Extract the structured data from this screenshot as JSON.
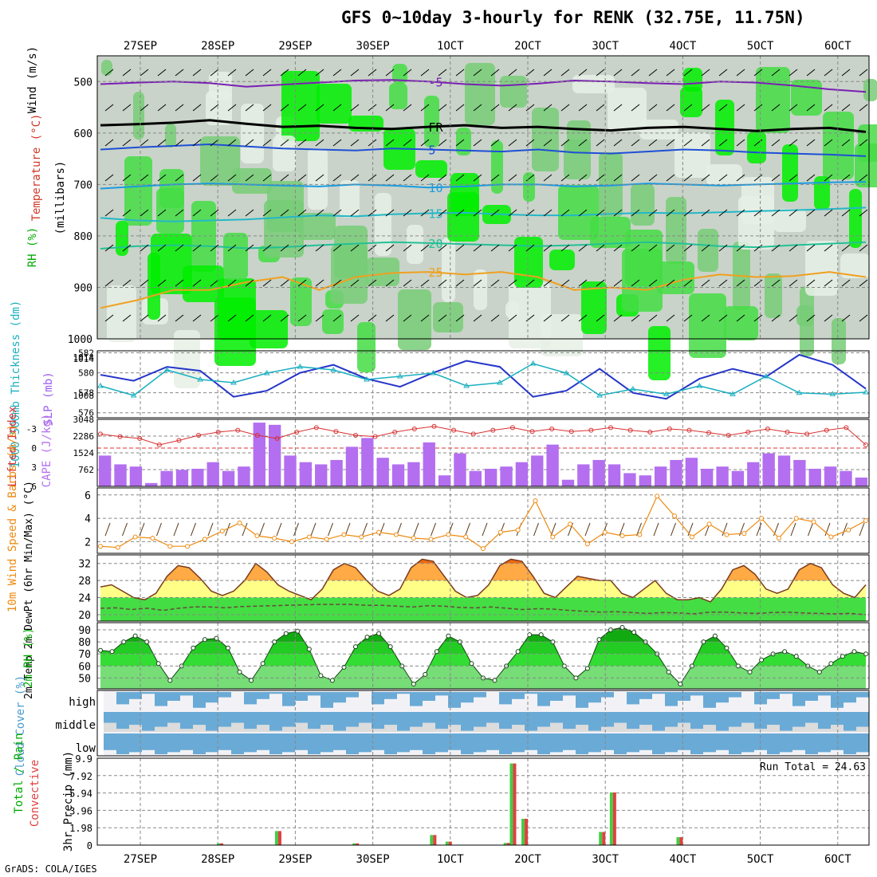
{
  "title": "GFS 0~10day 3-hourly for RENK (32.75E, 11.75N)",
  "footer": "GrADS: COLA/IGES",
  "date_labels": [
    "27SEP",
    "28SEP",
    "29SEP",
    "30SEP",
    "1OCT",
    "2OCT",
    "3OCT",
    "4OCT",
    "5OCT",
    "6OCT"
  ],
  "chart_data": [
    {
      "type": "heatmap",
      "panel": "upper-air",
      "ylabel": "(millibars)",
      "legend_labels": [
        "RH (%)",
        "Temperature (°C)",
        "Wind (m/s)"
      ],
      "yticks": [
        500,
        600,
        700,
        800,
        900,
        1000
      ],
      "ylim": [
        1000,
        450
      ],
      "temperature_contours": [
        {
          "label": "-5",
          "color": "#7a1fb5",
          "level_mb": [
            505,
            502,
            500,
            503,
            510,
            506,
            502,
            498,
            497,
            500,
            505,
            508,
            504,
            498,
            500,
            503,
            505,
            500,
            502,
            508,
            515,
            520
          ]
        },
        {
          "label": "FR",
          "color": "#000000",
          "level_mb": [
            585,
            583,
            580,
            575,
            582,
            588,
            586,
            590,
            592,
            588,
            585,
            590,
            588,
            592,
            595,
            590,
            588,
            592,
            596,
            592,
            590,
            598
          ]
        },
        {
          "label": "5",
          "color": "#1f4fd6",
          "level_mb": [
            632,
            628,
            625,
            622,
            626,
            630,
            632,
            634,
            630,
            632,
            634,
            636,
            632,
            638,
            640,
            636,
            632,
            634,
            638,
            640,
            642,
            645
          ]
        },
        {
          "label": "10",
          "color": "#1a9be0",
          "level_mb": [
            708,
            704,
            700,
            698,
            700,
            702,
            704,
            700,
            702,
            706,
            704,
            700,
            700,
            704,
            702,
            698,
            700,
            702,
            700,
            698,
            696,
            695
          ]
        },
        {
          "label": "15",
          "color": "#23b8c8",
          "level_mb": [
            765,
            770,
            772,
            770,
            768,
            764,
            760,
            762,
            758,
            756,
            755,
            758,
            760,
            760,
            757,
            755,
            756,
            754,
            752,
            750,
            748,
            745
          ]
        },
        {
          "label": "20",
          "color": "#22c196",
          "level_mb": [
            825,
            820,
            818,
            820,
            824,
            822,
            818,
            815,
            812,
            814,
            816,
            818,
            820,
            818,
            815,
            812,
            815,
            820,
            822,
            818,
            815,
            812
          ]
        },
        {
          "label": "25",
          "color": "#f0a020",
          "level_mb": [
            940,
            925,
            905,
            905,
            890,
            880,
            905,
            880,
            872,
            870,
            875,
            870,
            880,
            905,
            900,
            905,
            885,
            875,
            880,
            878,
            870,
            880
          ]
        }
      ]
    },
    {
      "type": "line",
      "panel": "thickness-slp",
      "ylabel_left": "1000-500mb Thickness (dm)",
      "ylabel_right": "SLP (mb)",
      "yticks_left": [
        "576",
        "578",
        "580",
        "582"
      ],
      "yticks_right": [
        "1008",
        "1014",
        "1014"
      ],
      "series": [
        {
          "name": "Thickness",
          "color": "#2535c8",
          "values": [
            579.8,
            579.2,
            580.6,
            580.2,
            577.6,
            578.2,
            580.0,
            580.8,
            579.4,
            578.6,
            580.0,
            581.2,
            580.6,
            577.6,
            578.2,
            580.4,
            578.0,
            577.4,
            579.4,
            580.4,
            579.6,
            581.8,
            580.8,
            578.4
          ]
        },
        {
          "name": "SLP",
          "color": "#1ab0c0",
          "values": [
            1009.5,
            1008.0,
            1012.0,
            1010.5,
            1010.0,
            1011.5,
            1012.5,
            1012.0,
            1010.5,
            1011.0,
            1011.5,
            1009.5,
            1010.0,
            1013.0,
            1011.5,
            1008.0,
            1009.0,
            1008.2,
            1009.5,
            1008.2,
            1011.0,
            1008.4,
            1008.2,
            1008.5
          ]
        }
      ]
    },
    {
      "type": "bar",
      "panel": "cape-li",
      "ylabel_left": "Lifted Index",
      "ylabel_right": "CAPE (J/kg)",
      "yticks_left": [
        "-3",
        "0",
        "3",
        "6"
      ],
      "yticks_right": [
        "762",
        "1524",
        "2286",
        "3048"
      ],
      "cape_values": [
        1400,
        1000,
        900,
        150,
        700,
        750,
        800,
        1100,
        700,
        900,
        2900,
        2800,
        1400,
        1100,
        1000,
        1200,
        1800,
        2200,
        1300,
        1000,
        1100,
        2000,
        500,
        1500,
        700,
        800,
        900,
        1100,
        1400,
        1900,
        300,
        1000,
        1200,
        1000,
        600,
        500,
        900,
        1200,
        1300,
        800,
        900,
        700,
        1100,
        1500,
        1400,
        1200,
        800,
        900,
        700,
        400
      ],
      "li_values": [
        -2.2,
        -1.8,
        -1.5,
        -0.5,
        -1.2,
        -2.0,
        -2.5,
        -2.8,
        -2.0,
        -1.5,
        -2.5,
        -3.2,
        -2.6,
        -2.0,
        -1.8,
        -2.5,
        -3.0,
        -3.4,
        -2.8,
        -2.2,
        -2.8,
        -3.2,
        -2.6,
        -3.0,
        -2.6,
        -2.8,
        -3.2,
        -2.8,
        -2.5,
        -3.0,
        -2.8,
        -2.4,
        -2.0,
        -2.5,
        -3.0,
        -2.5,
        -2.2,
        -2.8,
        -3.2,
        -0.5
      ]
    },
    {
      "type": "line",
      "panel": "wind-10m",
      "ylabel": "10m Wind Speed & Barbs (m/s)",
      "yticks": [
        "2",
        "4",
        "6"
      ],
      "series": [
        {
          "name": "Speed",
          "color": "#ee8a10",
          "values": [
            1.6,
            1.5,
            2.4,
            2.3,
            1.6,
            1.6,
            2.2,
            2.9,
            3.6,
            2.5,
            2.3,
            2.0,
            2.4,
            2.2,
            2.6,
            2.4,
            2.8,
            2.6,
            2.3,
            2.2,
            2.6,
            2.4,
            1.4,
            2.8,
            3.0,
            5.5,
            2.4,
            3.5,
            1.8,
            2.8,
            2.5,
            2.6,
            5.9,
            4.2,
            2.4,
            3.5,
            2.6,
            2.7,
            4.0,
            2.3,
            4.0,
            3.7,
            2.4,
            3.0,
            3.8
          ]
        }
      ]
    },
    {
      "type": "area",
      "panel": "temperature-2m",
      "ylabel": "2m Temp 2m DewPt (6hr Min/Max) (°C)",
      "yticks": [
        "20",
        "24",
        "28",
        "32"
      ],
      "series": [
        {
          "name": "Temp",
          "values": [
            26.5,
            27.0,
            25.5,
            24.0,
            23.5,
            25.0,
            29.0,
            31.5,
            31.0,
            28.5,
            25.5,
            24.5,
            25.5,
            28.0,
            32.0,
            30.0,
            27.0,
            25.5,
            24.5,
            23.5,
            26.0,
            30.5,
            32.0,
            31.0,
            28.0,
            25.5,
            24.5,
            26.0,
            31.0,
            33.0,
            32.5,
            29.0,
            25.5,
            24.0,
            24.5,
            27.0,
            31.5,
            33.0,
            32.5,
            29.0,
            25.0,
            24.0,
            26.5,
            29.0,
            28.5,
            28.0,
            28.0,
            25.0,
            24.0,
            26.0,
            28.0,
            25.0,
            23.5,
            23.5,
            24.0,
            23.0,
            26.0,
            30.5,
            31.5,
            29.5,
            26.0,
            25.0,
            26.0,
            30.5,
            32.0,
            31.0,
            27.0,
            25.0,
            24.0,
            27.0
          ]
        },
        {
          "name": "DewPt",
          "values": [
            21.5,
            21.6,
            21.2,
            21.5,
            21.0,
            21.5,
            21.8,
            21.8,
            21.6,
            21.9,
            22.0,
            22.1,
            22.2,
            22.3,
            22.4,
            22.4,
            22.4,
            22.2,
            22.2,
            22.0,
            21.8,
            22.1,
            22.0,
            21.7,
            21.6,
            21.8,
            21.5,
            21.2,
            21.4,
            21.3,
            21.0,
            20.8,
            20.6,
            20.7,
            20.5,
            20.3,
            20.5,
            20.4,
            20.2,
            20.6,
            20.6,
            20.4,
            20.3,
            20.5,
            20.6,
            20.4,
            20.3,
            20.2,
            20.3,
            20.0
          ]
        }
      ]
    },
    {
      "type": "area",
      "panel": "rh-2m",
      "ylabel": "2m RH (%)",
      "yticks": [
        "50",
        "60",
        "70",
        "80",
        "90"
      ],
      "series": [
        {
          "name": "RH",
          "values": [
            73,
            72,
            80,
            85,
            80,
            62,
            48,
            60,
            75,
            82,
            83,
            75,
            55,
            48,
            62,
            80,
            87,
            89,
            74,
            52,
            48,
            59,
            76,
            84,
            87,
            76,
            60,
            45,
            53,
            72,
            85,
            80,
            62,
            50,
            48,
            60,
            72,
            86,
            86,
            80,
            60,
            50,
            58,
            82,
            90,
            92,
            88,
            80,
            70,
            55,
            45,
            60,
            80,
            85,
            75,
            60,
            55,
            65,
            70,
            72,
            68,
            60,
            55,
            62,
            68,
            72,
            70
          ]
        }
      ]
    },
    {
      "type": "table",
      "panel": "cloud-cover",
      "ylabel": "Cloud Cover (%)",
      "levels": [
        "high",
        "middle",
        "low"
      ]
    },
    {
      "type": "bar",
      "panel": "precip",
      "ylabel": "3hr Precip (mm)",
      "legend_labels": [
        "Total / Rain",
        "Convective"
      ],
      "yticks": [
        "0",
        "1.98",
        "3.96",
        "5.94",
        "7.92",
        "9.9"
      ],
      "annotation": "Run Total = 24.63",
      "ylim": [
        0,
        9.9
      ],
      "bars": [
        {
          "day": 0.05,
          "total": 0.05
        },
        {
          "day": 1.05,
          "total": 0.2
        },
        {
          "day": 1.8,
          "total": 1.6
        },
        {
          "day": 2.8,
          "total": 0.2
        },
        {
          "day": 3.8,
          "total": 1.15
        },
        {
          "day": 4.0,
          "total": 0.4
        },
        {
          "day": 4.75,
          "total": 0.25
        },
        {
          "day": 4.83,
          "total": 9.3
        },
        {
          "day": 4.98,
          "total": 3.0
        },
        {
          "day": 5.98,
          "total": 1.5
        },
        {
          "day": 6.12,
          "total": 6.0
        },
        {
          "day": 6.98,
          "total": 0.9
        },
        {
          "day": 8.9,
          "total": 0.05
        }
      ]
    }
  ]
}
